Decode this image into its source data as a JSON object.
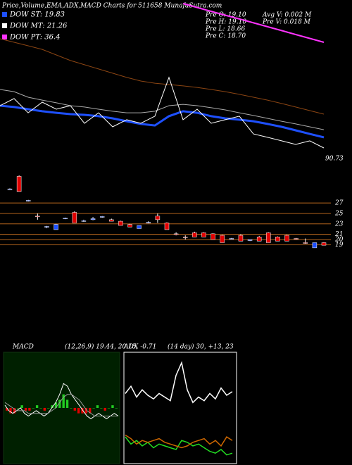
{
  "header": {
    "title": "Price,Volume,EMA,ADX,MACD Charts for 511658 MunafaSutra.com"
  },
  "legend": [
    {
      "label": "DOW ST: 19.83",
      "color": "#1e50ff"
    },
    {
      "label": "DOW MT: 21.26",
      "color": "#ffffff"
    },
    {
      "label": "DOW PT: 36.4",
      "color": "#ff33ff"
    }
  ],
  "quote": {
    "open": "Pre  O: 19.10",
    "high": "Pre  H: 19.10",
    "low": "Pre  L: 18.66",
    "close": "Pre  C: 18.70",
    "avg_volume": "Avg V: 0.002  M",
    "prev_volume": "Pre  V: 0.018 M"
  },
  "low_label": "90.73",
  "chart_data": [
    {
      "type": "line",
      "ylim": [
        0,
        100
      ],
      "series": [
        {
          "name": "EMA long",
          "color": "#8b4513",
          "width": 1,
          "values": [
            77.1,
            75,
            72.9,
            70.8,
            67.5,
            64.2,
            61.7,
            59.2,
            56.7,
            54.2,
            52.1,
            50.8,
            50,
            49.2,
            48.3,
            47.1,
            45.8,
            44.2,
            42.5,
            40.8,
            38.8,
            36.7,
            34.6,
            32.5
          ]
        },
        {
          "name": "SMA",
          "color": "#aaaaaa",
          "width": 1,
          "values": [
            47.1,
            45.8,
            42.5,
            40.8,
            39.2,
            37.5,
            36.7,
            35.4,
            34.2,
            33.3,
            33.3,
            34.2,
            37.5,
            38.3,
            37.5,
            36.3,
            35,
            33.3,
            31.7,
            30,
            28.3,
            26.7,
            25,
            23.3
          ]
        },
        {
          "name": "EMA short",
          "color": "#1e50ff",
          "width": 3,
          "values": [
            37.5,
            36.7,
            35.4,
            34.2,
            33.3,
            32.5,
            32.1,
            31.3,
            30,
            28.3,
            26.7,
            25.8,
            31.3,
            34.2,
            33.3,
            31.3,
            30,
            29.2,
            28.3,
            26.7,
            25,
            22.9,
            20.8,
            18.8
          ]
        },
        {
          "name": "Price",
          "color": "#ffffff",
          "width": 1,
          "values": [
            37.5,
            41.7,
            33.3,
            39.6,
            35.4,
            37.5,
            27.1,
            33.3,
            25,
            29.2,
            27.1,
            31.3,
            54.2,
            29.2,
            35.4,
            27.1,
            29.2,
            31.3,
            20.8,
            18.8,
            16.7,
            14.6,
            16.7,
            12.5
          ]
        },
        {
          "name": "Trend",
          "color": "#ff33ff",
          "width": 2,
          "values": [
            null,
            null,
            null,
            null,
            null,
            null,
            null,
            null,
            null,
            null,
            null,
            null,
            null,
            97.9,
            95.6,
            93.3,
            91,
            88.8,
            86.5,
            84.2,
            81.9,
            79.6,
            77.3,
            75
          ]
        }
      ]
    },
    {
      "type": "candlestick",
      "ylim": [
        17.3,
        33.5
      ],
      "yticks": [
        27,
        25,
        23,
        21,
        20,
        19
      ],
      "up_color": "#1e50ff",
      "down_color": "#e00000",
      "level_color": "#b5651d",
      "ohlc": [
        [
          29.6,
          29.8,
          29.5,
          29.7
        ],
        [
          32.1,
          32.3,
          29.2,
          29.2
        ],
        [
          27.4,
          27.6,
          27.3,
          27.5
        ],
        [
          24.5,
          25.0,
          23.8,
          24.4
        ],
        [
          22.4,
          22.6,
          22.2,
          22.5
        ],
        [
          21.9,
          23.0,
          21.9,
          22.9
        ],
        [
          24.0,
          24.2,
          23.9,
          24.1
        ],
        [
          25.2,
          25.4,
          23.2,
          23.2
        ],
        [
          23.5,
          23.8,
          23.4,
          23.6
        ],
        [
          23.8,
          24.3,
          23.7,
          24.0
        ],
        [
          24.3,
          24.5,
          24.2,
          24.4
        ],
        [
          23.8,
          24.0,
          23.5,
          23.5
        ],
        [
          23.5,
          23.6,
          22.7,
          22.7
        ],
        [
          22.9,
          23.0,
          22.4,
          22.4
        ],
        [
          22.1,
          22.7,
          22.1,
          22.7
        ],
        [
          23.2,
          23.5,
          23.1,
          23.3
        ],
        [
          24.5,
          25.0,
          23.2,
          23.8
        ],
        [
          23.2,
          23.3,
          21.9,
          21.9
        ],
        [
          21.1,
          21.4,
          20.8,
          21.0
        ],
        [
          20.5,
          20.8,
          20.0,
          20.4
        ],
        [
          21.3,
          21.5,
          20.5,
          20.5
        ],
        [
          21.3,
          21.4,
          20.5,
          20.5
        ],
        [
          21.1,
          21.2,
          20.0,
          20.0
        ],
        [
          20.8,
          20.9,
          19.4,
          19.4
        ],
        [
          20.2,
          20.3,
          20.1,
          20.2
        ],
        [
          20.8,
          21.0,
          19.7,
          19.7
        ],
        [
          19.8,
          20.0,
          19.7,
          20.0
        ],
        [
          20.5,
          20.7,
          19.7,
          19.7
        ],
        [
          21.3,
          21.4,
          19.4,
          19.4
        ],
        [
          20.5,
          20.6,
          19.7,
          19.7
        ],
        [
          20.8,
          20.9,
          19.7,
          19.7
        ],
        [
          20.2,
          20.3,
          20.0,
          20.1
        ],
        [
          19.4,
          20.2,
          19.2,
          19.3
        ],
        [
          18.4,
          19.4,
          18.4,
          19.4
        ],
        [
          19.4,
          19.5,
          18.9,
          18.9
        ]
      ]
    },
    {
      "type": "macd",
      "title": "MACD",
      "subtitle": "(12,26,9) 19.44, 20.15, -0.71",
      "ylim": [
        -2,
        2
      ],
      "up_color": "#22cc22",
      "down_color": "#e00000",
      "histogram": [
        -0.1,
        -0.2,
        -0.2,
        0,
        0.1,
        -0.1,
        -0.1,
        0,
        0.1,
        0,
        -0.1,
        0,
        0.1,
        0.2,
        0.3,
        0.5,
        0.3,
        0,
        -0.1,
        -0.2,
        -0.2,
        -0.2,
        -0.2,
        0,
        0.1,
        0,
        -0.1,
        0,
        0.1,
        0
      ],
      "series": [
        {
          "name": "MACD",
          "color": "#ffffff",
          "values": [
            0.1,
            -0.1,
            -0.2,
            -0.1,
            0,
            -0.2,
            -0.3,
            -0.2,
            -0.1,
            -0.2,
            -0.3,
            -0.2,
            0,
            0.2,
            0.5,
            0.9,
            0.8,
            0.5,
            0.3,
            0.1,
            -0.1,
            -0.3,
            -0.4,
            -0.3,
            -0.2,
            -0.3,
            -0.4,
            -0.3,
            -0.2,
            -0.3
          ]
        },
        {
          "name": "Signal",
          "color": "#999999",
          "values": [
            0.2,
            0.1,
            0,
            -0.1,
            -0.1,
            -0.1,
            -0.2,
            -0.2,
            -0.2,
            -0.2,
            -0.2,
            -0.2,
            -0.1,
            0,
            0.2,
            0.4,
            0.5,
            0.5,
            0.4,
            0.3,
            0.1,
            -0.1,
            -0.2,
            -0.3,
            -0.3,
            -0.3,
            -0.3,
            -0.3,
            -0.3,
            -0.3
          ]
        }
      ]
    },
    {
      "type": "adx",
      "title": "ADX",
      "subtitle": "(14 day) 30, +13, 23",
      "ylim": [
        0,
        60
      ],
      "series": [
        {
          "name": "ADX",
          "color": "#ffffff",
          "values": [
            38,
            42,
            36,
            40,
            37,
            35,
            38,
            36,
            34,
            48,
            55,
            40,
            33,
            36,
            34,
            38,
            35,
            41,
            37,
            39
          ]
        },
        {
          "name": "+DI",
          "color": "#22dd22",
          "values": [
            14,
            10,
            12,
            9,
            11,
            8,
            10,
            9,
            8,
            7,
            12,
            11,
            9,
            10,
            8,
            6,
            5,
            7,
            4,
            5
          ]
        },
        {
          "name": "-DI",
          "color": "#cc6600",
          "values": [
            15,
            13,
            10,
            12,
            11,
            12,
            13,
            11,
            10,
            9,
            8,
            9,
            11,
            12,
            13,
            10,
            12,
            9,
            14,
            12
          ]
        }
      ]
    }
  ]
}
